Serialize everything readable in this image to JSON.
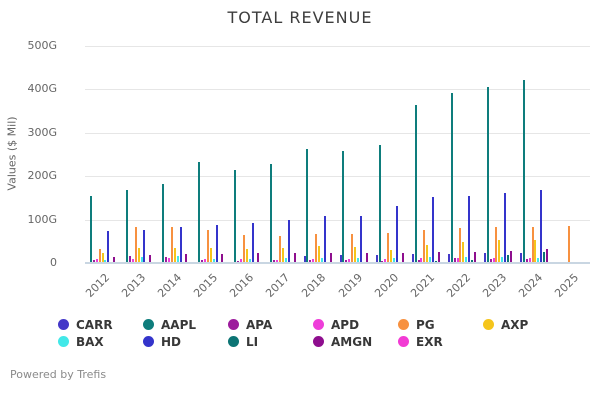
{
  "title": "TOTAL REVENUE",
  "y_axis": {
    "label": "Values ($ Mil)"
  },
  "footer": {
    "text": "Powered by Trefis"
  },
  "chart_data": {
    "type": "bar",
    "title": "TOTAL REVENUE",
    "xlabel": "",
    "ylabel": "Values ($ Mil)",
    "ylim": [
      0,
      500
    ],
    "unit": "G = billions ($ Mil scale)",
    "grid": true,
    "legend_position": "bottom",
    "y_ticks": [
      {
        "value": 0,
        "label": "0"
      },
      {
        "value": 100,
        "label": "100G"
      },
      {
        "value": 200,
        "label": "200G"
      },
      {
        "value": 300,
        "label": "300G"
      },
      {
        "value": 400,
        "label": "400G"
      },
      {
        "value": 500,
        "label": "500G"
      }
    ],
    "categories": [
      "2012",
      "2013",
      "2014",
      "2015",
      "2016",
      "2017",
      "2018",
      "2019",
      "2020",
      "2021",
      "2022",
      "2023",
      "2024",
      "2025"
    ],
    "series": [
      {
        "name": "CARR",
        "color": "#4438c8",
        "values": [
          0,
          0,
          0,
          0,
          0,
          0,
          17,
          18.5,
          17.5,
          20.5,
          20.5,
          22,
          22.5,
          0
        ]
      },
      {
        "name": "AAPL",
        "color": "#0e7d7c",
        "values": [
          155,
          168,
          181,
          232,
          215,
          228,
          263,
          258,
          273,
          363,
          392,
          406,
          422,
          0
        ]
      },
      {
        "name": "APA",
        "color": "#9d1c9d",
        "values": [
          6,
          16.5,
          14,
          6.5,
          5.5,
          6,
          7.5,
          6.5,
          4.5,
          8,
          11,
          8.5,
          9.5,
          0
        ]
      },
      {
        "name": "APD",
        "color": "#ee3ed9",
        "values": [
          9.5,
          10,
          10.5,
          10,
          9.5,
          8,
          9,
          9,
          9,
          10.5,
          12.5,
          12.5,
          12,
          0
        ]
      },
      {
        "name": "PG",
        "color": "#f79140",
        "values": [
          33,
          84,
          82,
          76,
          65,
          63,
          67,
          68,
          70,
          76,
          80,
          82,
          84,
          85
        ]
      },
      {
        "name": "AXP",
        "color": "#f5c51b",
        "values": [
          24,
          34,
          35,
          34,
          33,
          33.5,
          40,
          37,
          31,
          42,
          48,
          52,
          54,
          0
        ]
      },
      {
        "name": "BAX",
        "color": "#42e8e8",
        "values": [
          6,
          15,
          16.5,
          10,
          10,
          10.5,
          11,
          11.5,
          11.5,
          13,
          15,
          15,
          10.5,
          0
        ]
      },
      {
        "name": "HD",
        "color": "#3434cb",
        "values": [
          74,
          76,
          82,
          88,
          93,
          100,
          108,
          109,
          131,
          151,
          155,
          162,
          168,
          0
        ]
      },
      {
        "name": "LI",
        "color": "#0c7474",
        "values": [
          0,
          0,
          0,
          0,
          0,
          0,
          0,
          0,
          1.5,
          4,
          6.5,
          18,
          26,
          0
        ]
      },
      {
        "name": "AMGN",
        "color": "#8e0e8e",
        "values": [
          15,
          18.5,
          20,
          21.5,
          23,
          22.5,
          23.5,
          23.5,
          24,
          26,
          26,
          28,
          33,
          0
        ]
      },
      {
        "name": "EXR",
        "color": "#f23bd4",
        "values": [
          0.5,
          0.6,
          0.7,
          0.8,
          1,
          1.1,
          1.2,
          1.3,
          1.4,
          1.6,
          1.9,
          2.6,
          3.3,
          0
        ]
      }
    ]
  }
}
